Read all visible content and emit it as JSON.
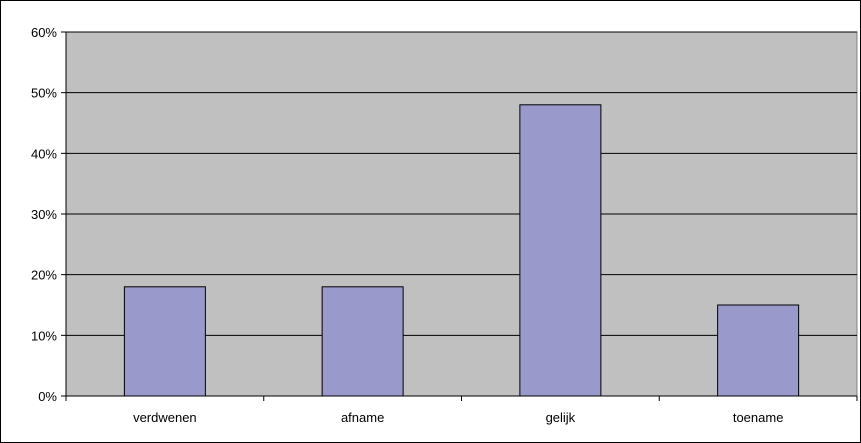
{
  "chart_data": {
    "type": "bar",
    "categories": [
      "verdwenen",
      "afname",
      "gelijk",
      "toename"
    ],
    "series": [
      {
        "values": [
          18,
          18,
          48,
          15
        ]
      }
    ],
    "yticks": [
      "0%",
      "10%",
      "20%",
      "30%",
      "40%",
      "50%",
      "60%"
    ],
    "ylim": [
      0,
      60
    ],
    "grid": true,
    "colors": {
      "plot_background": "#c0c0c0",
      "bar_fill": "#9999cc",
      "bar_stroke": "#000000",
      "gridline": "#000000"
    }
  }
}
